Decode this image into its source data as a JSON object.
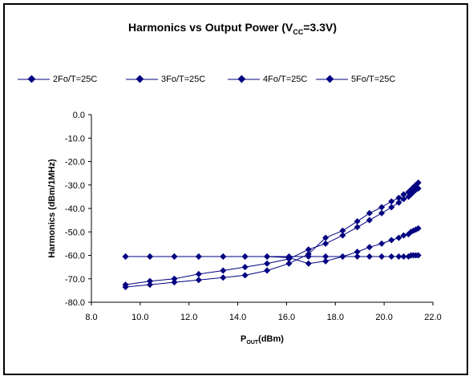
{
  "chart_data": {
    "type": "line",
    "title_main": "Harmonics vs Output Power (V",
    "title_sub": "CC",
    "title_end": "=3.3V)",
    "xlabel_main": "P",
    "xlabel_sub": "OUT",
    "xlabel_end": "(dBm)",
    "ylabel": "Harmonics (dBm/1MHz)",
    "xlim": [
      8.0,
      22.0
    ],
    "ylim": [
      -80.0,
      0.0
    ],
    "xticks": [
      "8.0",
      "10.0",
      "12.0",
      "14.0",
      "16.0",
      "18.0",
      "20.0",
      "22.0"
    ],
    "yticks": [
      "0.0",
      "-10.0",
      "-20.0",
      "-30.0",
      "-40.0",
      "-50.0",
      "-60.0",
      "-70.0",
      "-80.0"
    ],
    "x": [
      9.4,
      10.4,
      11.4,
      12.4,
      13.4,
      14.3,
      15.2,
      16.1,
      16.9,
      17.6,
      18.3,
      18.9,
      19.4,
      19.9,
      20.3,
      20.6,
      20.8,
      21.0,
      21.1,
      21.2,
      21.3,
      21.4
    ],
    "grid": false,
    "legend_position": "top",
    "series": [
      {
        "name": "2Fo/T=25C",
        "color": "#000080",
        "values": [
          -73.5,
          -72.5,
          -71.5,
          -70.5,
          -69.5,
          -68.5,
          -66.5,
          -63.5,
          -59.5,
          -52.5,
          -49.5,
          -45.5,
          -42.0,
          -39.5,
          -37.0,
          -35.5,
          -34.0,
          -33.0,
          -32.0,
          -31.0,
          -30.0,
          -29.0
        ]
      },
      {
        "name": "3Fo/T=25C",
        "color": "#000080",
        "values": [
          -72.5,
          -71.0,
          -70.0,
          -68.0,
          -66.5,
          -65.0,
          -63.5,
          -61.5,
          -57.5,
          -55.0,
          -51.5,
          -48.0,
          -45.0,
          -42.0,
          -39.5,
          -37.5,
          -36.0,
          -35.0,
          -34.0,
          -33.0,
          -32.0,
          -31.5
        ]
      },
      {
        "name": "4Fo/T=25C",
        "color": "#000080",
        "values": [
          -60.5,
          -60.5,
          -60.5,
          -60.5,
          -60.5,
          -60.5,
          -60.5,
          -60.5,
          -60.5,
          -60.5,
          -60.5,
          -60.5,
          -60.5,
          -60.5,
          -60.5,
          -60.5,
          -60.5,
          -60.5,
          -60.0,
          -60.0,
          -60.0,
          -60.0
        ]
      },
      {
        "name": "5Fo/T=25C",
        "color": "#000080",
        "values": [
          -60.5,
          -60.5,
          -60.5,
          -60.5,
          -60.5,
          -60.5,
          -60.5,
          -61.0,
          -63.5,
          -62.5,
          -60.5,
          -58.5,
          -56.5,
          -55.0,
          -53.5,
          -52.5,
          -51.5,
          -51.0,
          -50.0,
          -49.5,
          -49.0,
          -48.5
        ]
      }
    ]
  }
}
